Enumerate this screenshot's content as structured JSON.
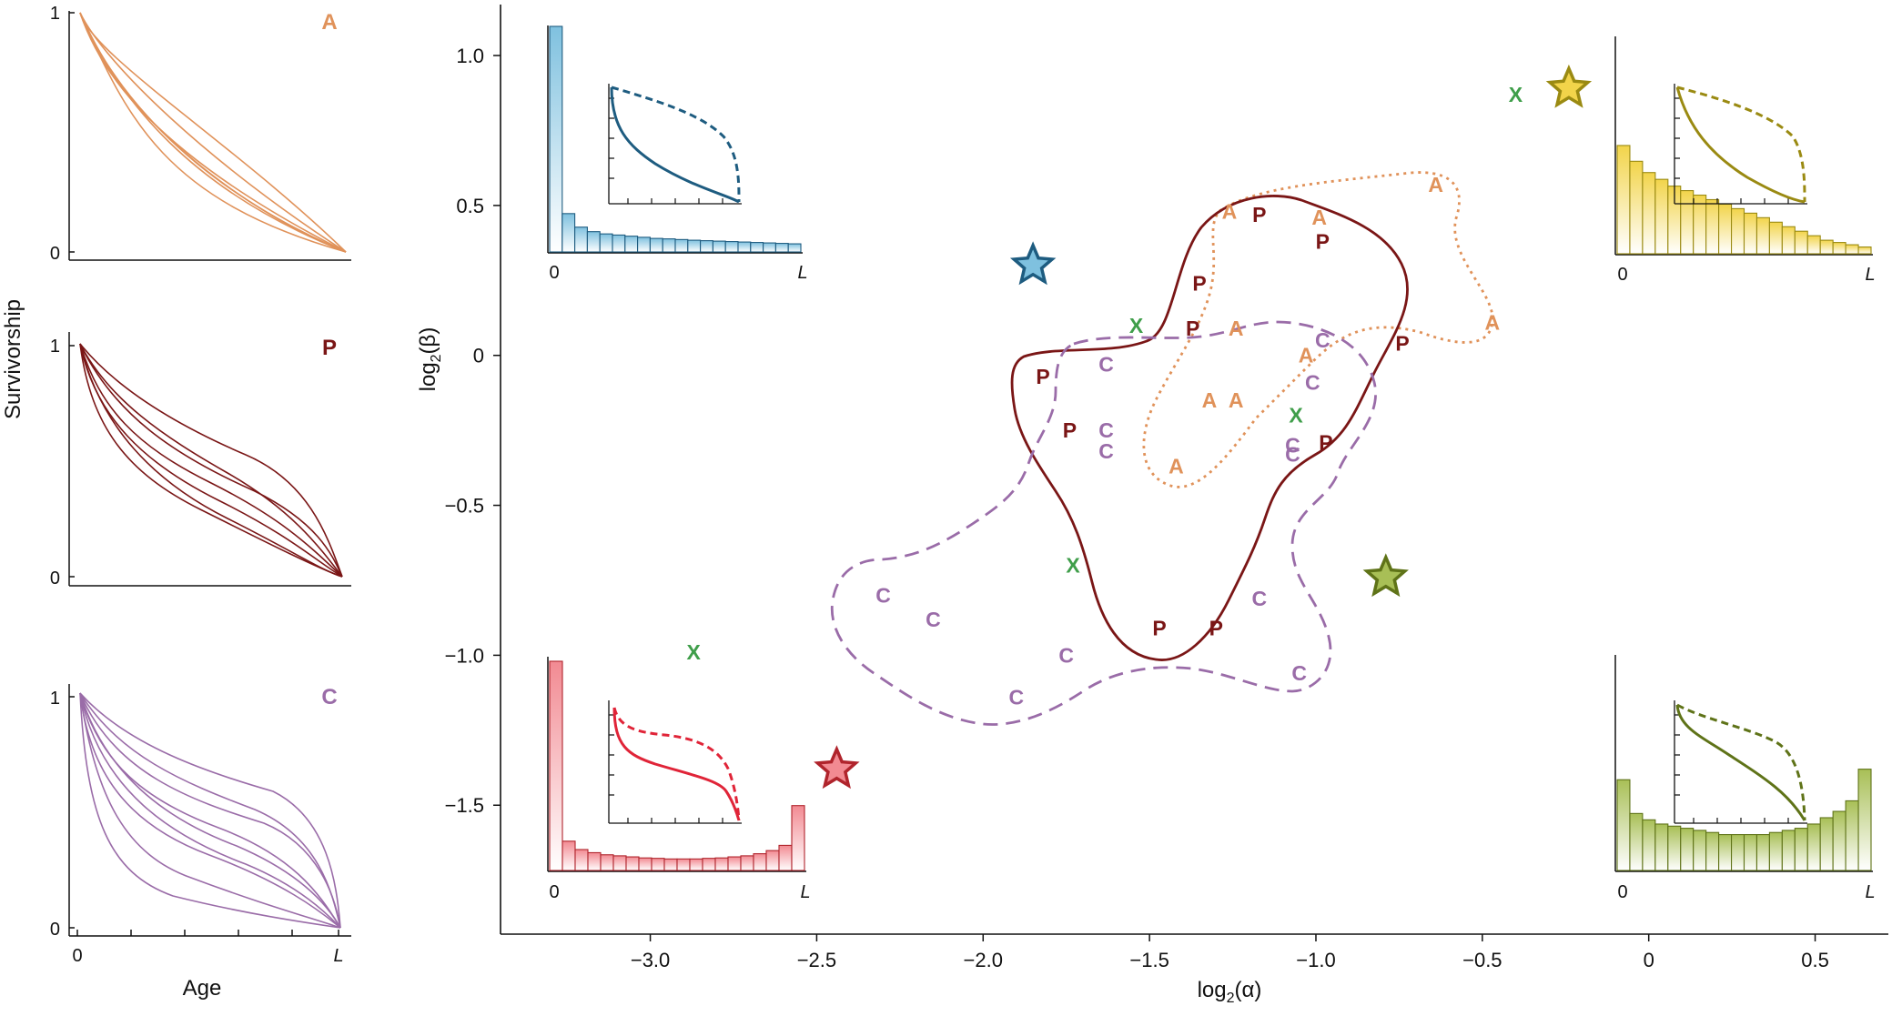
{
  "colors": {
    "A": "#e0925a",
    "P": "#7a1616",
    "C": "#9a6ca8",
    "X": "#3f9e4a",
    "blue": "#1e5c80",
    "blue_fill": "#7fc1df",
    "red": "#e02438",
    "red_fill": "#f28a92",
    "yellow": "#9a8a12",
    "yellow_fill": "#f2d44a",
    "olive": "#5f7318",
    "olive_fill": "#a8bf56",
    "star_red": "#b0242c",
    "star_blue": "#1e5c80"
  },
  "left_panels": {
    "ylabel": "Survivorship",
    "xlabel": "Age",
    "panels": [
      {
        "letter": "A",
        "ytick_top": "1",
        "ytick_bottom": "0"
      },
      {
        "letter": "P",
        "ytick_top": "1",
        "ytick_bottom": "0"
      },
      {
        "letter": "C",
        "ytick_top": "1",
        "ytick_bottom": "0",
        "xtick_left": "0",
        "xtick_right": "L"
      }
    ]
  },
  "chart_data": {
    "type": "scatter",
    "xlabel": "log2(α)",
    "ylabel": "log2(β)",
    "xlim": [
      -3.45,
      0.72
    ],
    "ylim": [
      -1.93,
      1.17
    ],
    "xticks": [
      "−3.0",
      "−2.5",
      "−2.0",
      "−1.5",
      "−1.0",
      "−0.5",
      "0",
      "0.5"
    ],
    "xtick_values": [
      -3.0,
      -2.5,
      -2.0,
      -1.5,
      -1.0,
      -0.5,
      0,
      0.5
    ],
    "yticks": [
      "1.0",
      "0.5",
      "0",
      "−0.5",
      "−1.0",
      "−1.5"
    ],
    "ytick_values": [
      1.0,
      0.5,
      0,
      -0.5,
      -1.0,
      -1.5
    ],
    "series": [
      {
        "name": "A",
        "points": [
          [
            -1.26,
            0.48
          ],
          [
            -0.99,
            0.46
          ],
          [
            -0.64,
            0.57
          ],
          [
            -1.24,
            0.09
          ],
          [
            -1.03,
            0.0
          ],
          [
            -0.47,
            0.11
          ],
          [
            -1.32,
            -0.15
          ],
          [
            -1.24,
            -0.15
          ],
          [
            -1.42,
            -0.37
          ]
        ]
      },
      {
        "name": "P",
        "points": [
          [
            -1.17,
            0.47
          ],
          [
            -0.98,
            0.38
          ],
          [
            -1.35,
            0.24
          ],
          [
            -1.37,
            0.09
          ],
          [
            -0.74,
            0.04
          ],
          [
            -1.82,
            -0.07
          ],
          [
            -1.74,
            -0.25
          ],
          [
            -0.97,
            -0.29
          ],
          [
            -1.47,
            -0.91
          ],
          [
            -1.3,
            -0.91
          ]
        ]
      },
      {
        "name": "C",
        "points": [
          [
            -1.63,
            -0.03
          ],
          [
            -0.98,
            0.05
          ],
          [
            -1.01,
            -0.09
          ],
          [
            -1.63,
            -0.25
          ],
          [
            -1.63,
            -0.32
          ],
          [
            -1.07,
            -0.3
          ],
          [
            -1.07,
            -0.33
          ],
          [
            -2.3,
            -0.8
          ],
          [
            -2.15,
            -0.88
          ],
          [
            -1.75,
            -1.0
          ],
          [
            -1.17,
            -0.81
          ],
          [
            -1.05,
            -1.06
          ],
          [
            -1.9,
            -1.14
          ]
        ]
      },
      {
        "name": "X",
        "points": [
          [
            -0.4,
            0.87
          ],
          [
            -1.54,
            0.1
          ],
          [
            -1.06,
            -0.2
          ],
          [
            -1.73,
            -0.7
          ],
          [
            -2.87,
            -0.99
          ]
        ]
      }
    ],
    "stars": [
      {
        "name": "blue star",
        "x": -1.85,
        "y": 0.3
      },
      {
        "name": "yellow star",
        "x": -0.24,
        "y": 0.89
      },
      {
        "name": "olive star",
        "x": -0.79,
        "y": -0.74
      },
      {
        "name": "red star",
        "x": -2.44,
        "y": -1.38
      }
    ],
    "contours": [
      {
        "name": "A",
        "style": "dotted"
      },
      {
        "name": "P",
        "style": "solid"
      },
      {
        "name": "C",
        "style": "dashed"
      }
    ]
  },
  "insets": [
    {
      "name": "top-left",
      "xtick_left": "0",
      "xtick_right": "L",
      "bars": [
        1.0,
        0.17,
        0.11,
        0.09,
        0.08,
        0.075,
        0.07,
        0.065,
        0.06,
        0.058,
        0.055,
        0.052,
        0.05,
        0.048,
        0.046,
        0.044,
        0.042,
        0.04,
        0.038,
        0.036
      ]
    },
    {
      "name": "top-right",
      "xtick_left": "0",
      "xtick_right": "L",
      "bars": [
        0.48,
        0.41,
        0.36,
        0.33,
        0.3,
        0.28,
        0.26,
        0.24,
        0.22,
        0.2,
        0.18,
        0.16,
        0.14,
        0.12,
        0.1,
        0.08,
        0.06,
        0.05,
        0.04,
        0.03
      ]
    },
    {
      "name": "bottom-left",
      "xtick_left": "0",
      "xtick_right": "L",
      "bars": [
        1.0,
        0.14,
        0.1,
        0.085,
        0.075,
        0.07,
        0.065,
        0.06,
        0.058,
        0.055,
        0.055,
        0.055,
        0.058,
        0.06,
        0.065,
        0.07,
        0.08,
        0.095,
        0.12,
        0.31
      ]
    },
    {
      "name": "bottom-right",
      "xtick_left": "0",
      "xtick_right": "L",
      "bars": [
        0.43,
        0.27,
        0.24,
        0.22,
        0.21,
        0.2,
        0.19,
        0.18,
        0.17,
        0.17,
        0.17,
        0.17,
        0.18,
        0.19,
        0.2,
        0.22,
        0.25,
        0.28,
        0.33,
        0.48
      ]
    }
  ]
}
